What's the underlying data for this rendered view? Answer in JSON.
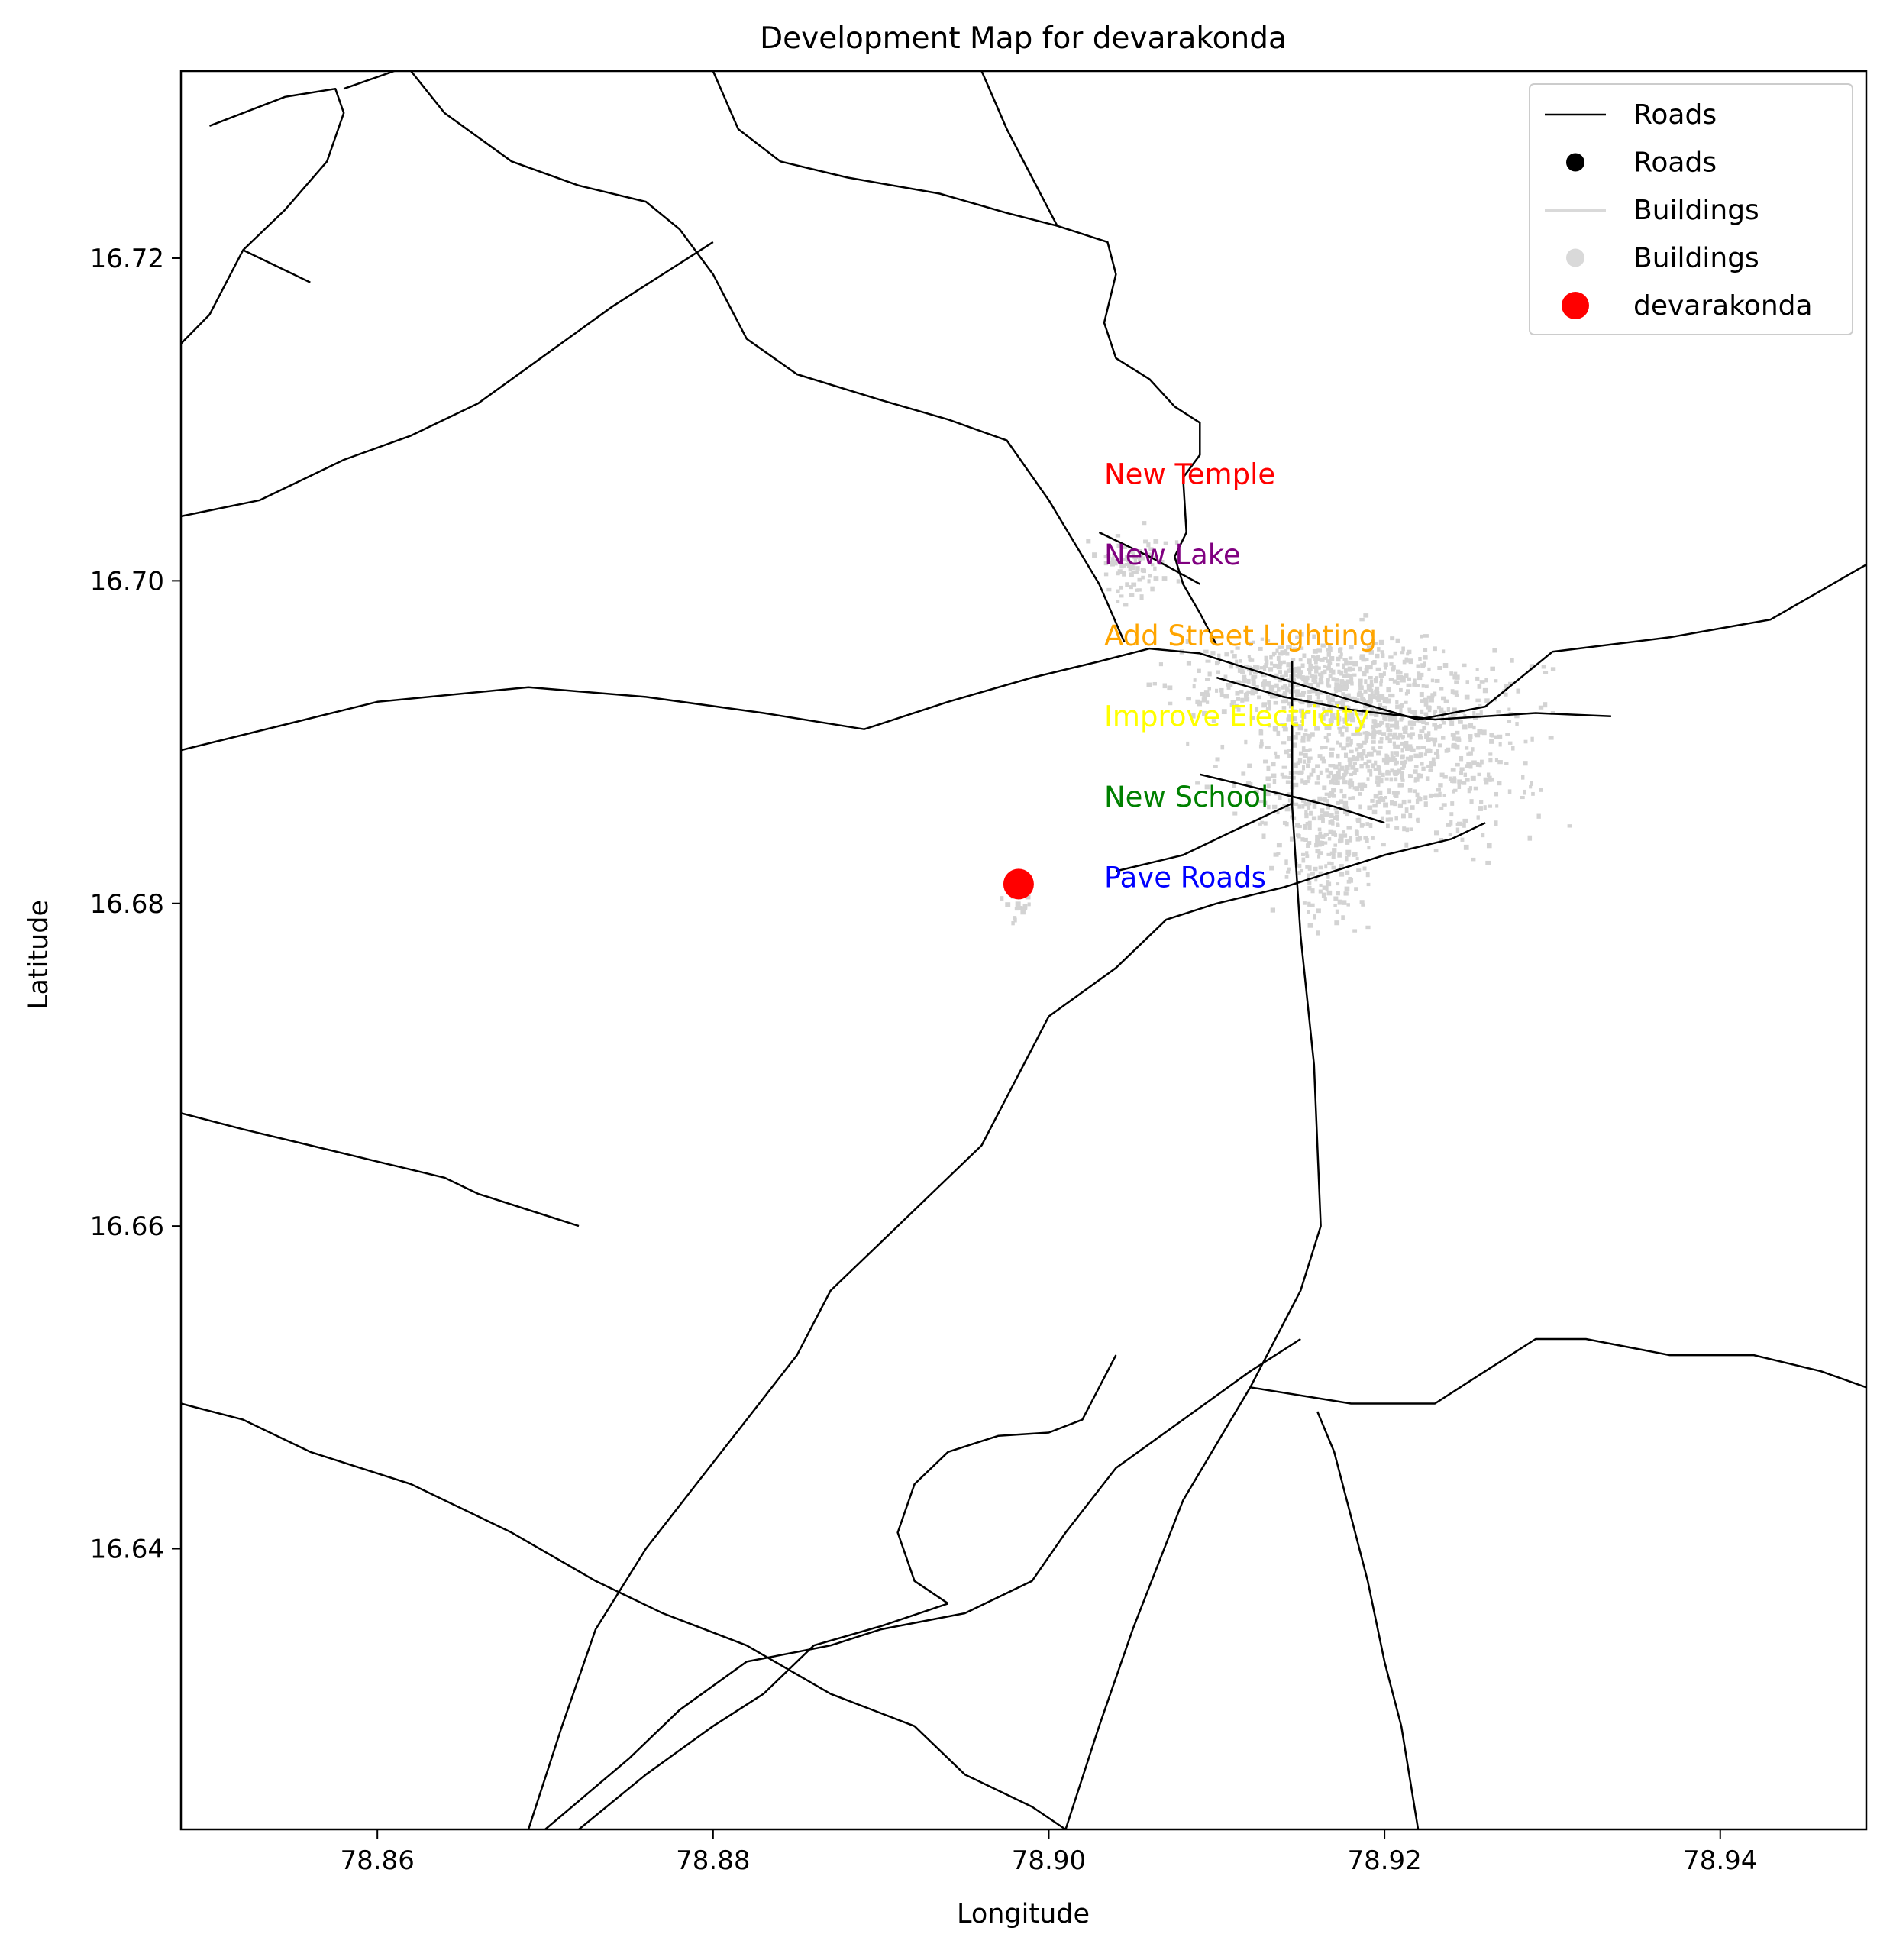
{
  "chart_data": {
    "type": "map",
    "title": "Development Map for devarakonda",
    "xlabel": "Longitude",
    "ylabel": "Latitude",
    "xlim": [
      78.8483,
      78.9487
    ],
    "ylim": [
      16.6226,
      16.7316
    ],
    "xticks": [
      78.86,
      78.88,
      78.9,
      78.92,
      78.94
    ],
    "yticks": [
      16.64,
      16.66,
      16.68,
      16.7,
      16.72
    ],
    "xtick_labels": [
      "78.86",
      "78.88",
      "78.90",
      "78.92",
      "78.94"
    ],
    "ytick_labels": [
      "16.64",
      "16.66",
      "16.68",
      "16.70",
      "16.72"
    ],
    "grid": false,
    "legend_position": "top-right",
    "legend": [
      {
        "label": "Roads",
        "kind": "line",
        "color": "#000000"
      },
      {
        "label": "Roads",
        "kind": "marker",
        "color": "#000000"
      },
      {
        "label": "Buildings",
        "kind": "line",
        "color": "#d9d9d9"
      },
      {
        "label": "Buildings",
        "kind": "marker",
        "color": "#d9d9d9"
      },
      {
        "label": "devarakonda",
        "kind": "marker",
        "color": "#ff0000"
      }
    ],
    "village": {
      "name": "devarakonda",
      "lon": 78.8982,
      "lat": 16.6812,
      "color": "#ff0000"
    },
    "annotations": [
      {
        "text": "New Temple",
        "lon": 78.9033,
        "lat": 16.706,
        "color": "#ff0000"
      },
      {
        "text": "New Lake",
        "lon": 78.9033,
        "lat": 16.701,
        "color": "#800080"
      },
      {
        "text": "Add Street Lighting",
        "lon": 78.9033,
        "lat": 16.696,
        "color": "#ffa500"
      },
      {
        "text": "Improve Electricity",
        "lon": 78.9033,
        "lat": 16.691,
        "color": "#ffff00"
      },
      {
        "text": "New School",
        "lon": 78.9033,
        "lat": 16.686,
        "color": "#008000"
      },
      {
        "text": "Pave Roads",
        "lon": 78.9033,
        "lat": 16.681,
        "color": "#0000ff"
      }
    ],
    "roads": [
      [
        [
          78.8483,
          16.6895
        ],
        [
          78.86,
          16.6925
        ],
        [
          78.869,
          16.6934
        ],
        [
          78.876,
          16.6928
        ],
        [
          78.883,
          16.6918
        ],
        [
          78.889,
          16.6908
        ],
        [
          78.894,
          16.6925
        ],
        [
          78.899,
          16.694
        ],
        [
          78.903,
          16.695
        ],
        [
          78.906,
          16.6958
        ],
        [
          78.909,
          16.6955
        ],
        [
          78.913,
          16.6942
        ],
        [
          78.918,
          16.6926
        ],
        [
          78.922,
          16.6914
        ],
        [
          78.926,
          16.6922
        ],
        [
          78.93,
          16.6956
        ],
        [
          78.937,
          16.6965
        ],
        [
          78.943,
          16.6976
        ],
        [
          78.9487,
          16.701
        ]
      ],
      [
        [
          78.91,
          16.694
        ],
        [
          78.914,
          16.6928
        ],
        [
          78.918,
          16.692
        ],
        [
          78.923,
          16.6914
        ],
        [
          78.929,
          16.6918
        ],
        [
          78.9335,
          16.6916
        ]
      ],
      [
        [
          78.896,
          16.7316
        ],
        [
          78.8975,
          16.728
        ],
        [
          78.8995,
          16.724
        ],
        [
          78.9005,
          16.722
        ],
        [
          78.9035,
          16.721
        ],
        [
          78.904,
          16.719
        ],
        [
          78.9033,
          16.716
        ],
        [
          78.904,
          16.7138
        ],
        [
          78.906,
          16.7125
        ],
        [
          78.9075,
          16.7108
        ],
        [
          78.909,
          16.7098
        ],
        [
          78.909,
          16.7078
        ],
        [
          78.908,
          16.7064
        ],
        [
          78.9082,
          16.703
        ],
        [
          78.9075,
          16.7015
        ],
        [
          78.908,
          16.6998
        ],
        [
          78.909,
          16.698
        ],
        [
          78.91,
          16.696
        ]
      ],
      [
        [
          78.88,
          16.7316
        ],
        [
          78.8815,
          16.728
        ],
        [
          78.884,
          16.726
        ],
        [
          78.888,
          16.725
        ],
        [
          78.8935,
          16.724
        ],
        [
          78.8975,
          16.7228
        ],
        [
          78.9005,
          16.722
        ]
      ],
      [
        [
          78.85,
          16.7282
        ],
        [
          78.8545,
          16.73
        ],
        [
          78.8575,
          16.7305
        ],
        [
          78.858,
          16.729
        ],
        [
          78.857,
          16.726
        ],
        [
          78.8545,
          16.723
        ],
        [
          78.852,
          16.7205
        ],
        [
          78.85,
          16.7165
        ],
        [
          78.8483,
          16.7147
        ]
      ],
      [
        [
          78.852,
          16.7205
        ],
        [
          78.856,
          16.7185
        ]
      ],
      [
        [
          78.858,
          16.7305
        ],
        [
          78.861,
          16.7316
        ]
      ],
      [
        [
          78.862,
          16.7316
        ],
        [
          78.864,
          16.729
        ],
        [
          78.868,
          16.726
        ],
        [
          78.872,
          16.7245
        ],
        [
          78.876,
          16.7235
        ],
        [
          78.878,
          16.7218
        ],
        [
          78.88,
          16.719
        ],
        [
          78.882,
          16.715
        ],
        [
          78.885,
          16.7128
        ],
        [
          78.89,
          16.7112
        ],
        [
          78.894,
          16.71
        ],
        [
          78.8975,
          16.7087
        ],
        [
          78.9,
          16.705
        ],
        [
          78.903,
          16.6998
        ],
        [
          78.9045,
          16.6962
        ]
      ],
      [
        [
          78.903,
          16.703
        ],
        [
          78.906,
          16.7015
        ],
        [
          78.909,
          16.6998
        ]
      ],
      [
        [
          78.9145,
          16.695
        ],
        [
          78.9145,
          16.686
        ],
        [
          78.915,
          16.678
        ],
        [
          78.9158,
          16.67
        ],
        [
          78.9162,
          16.66
        ],
        [
          78.915,
          16.656
        ],
        [
          78.912,
          16.65
        ],
        [
          78.908,
          16.643
        ],
        [
          78.905,
          16.635
        ],
        [
          78.903,
          16.629
        ],
        [
          78.901,
          16.6226
        ]
      ],
      [
        [
          78.87,
          16.6226
        ],
        [
          78.875,
          16.627
        ],
        [
          78.878,
          16.63
        ],
        [
          78.882,
          16.633
        ],
        [
          78.887,
          16.634
        ],
        [
          78.89,
          16.635
        ],
        [
          78.895,
          16.636
        ],
        [
          78.899,
          16.638
        ],
        [
          78.901,
          16.641
        ],
        [
          78.904,
          16.645
        ],
        [
          78.908,
          16.648
        ],
        [
          78.912,
          16.651
        ],
        [
          78.915,
          16.653
        ]
      ],
      [
        [
          78.869,
          16.6226
        ],
        [
          78.871,
          16.629
        ],
        [
          78.873,
          16.635
        ],
        [
          78.876,
          16.64
        ],
        [
          78.879,
          16.644
        ],
        [
          78.882,
          16.648
        ],
        [
          78.885,
          16.652
        ],
        [
          78.887,
          16.656
        ],
        [
          78.89,
          16.659
        ],
        [
          78.893,
          16.662
        ],
        [
          78.896,
          16.665
        ],
        [
          78.898,
          16.669
        ],
        [
          78.9,
          16.673
        ],
        [
          78.904,
          16.676
        ],
        [
          78.907,
          16.679
        ],
        [
          78.91,
          16.68
        ],
        [
          78.914,
          16.681
        ],
        [
          78.917,
          16.682
        ],
        [
          78.92,
          16.683
        ],
        [
          78.924,
          16.684
        ],
        [
          78.926,
          16.685
        ]
      ],
      [
        [
          78.8483,
          16.667
        ],
        [
          78.852,
          16.666
        ],
        [
          78.856,
          16.665
        ],
        [
          78.86,
          16.664
        ],
        [
          78.864,
          16.663
        ],
        [
          78.866,
          16.662
        ],
        [
          78.869,
          16.661
        ],
        [
          78.872,
          16.66
        ]
      ],
      [
        [
          78.8483,
          16.649
        ],
        [
          78.852,
          16.648
        ],
        [
          78.856,
          16.646
        ],
        [
          78.862,
          16.644
        ],
        [
          78.868,
          16.641
        ],
        [
          78.873,
          16.638
        ],
        [
          78.877,
          16.636
        ],
        [
          78.882,
          16.634
        ],
        [
          78.887,
          16.631
        ],
        [
          78.892,
          16.629
        ],
        [
          78.895,
          16.626
        ],
        [
          78.899,
          16.624
        ],
        [
          78.901,
          16.6226
        ]
      ],
      [
        [
          78.912,
          16.65
        ],
        [
          78.918,
          16.649
        ],
        [
          78.923,
          16.649
        ],
        [
          78.926,
          16.651
        ],
        [
          78.929,
          16.653
        ],
        [
          78.932,
          16.653
        ],
        [
          78.937,
          16.652
        ],
        [
          78.942,
          16.652
        ],
        [
          78.946,
          16.651
        ],
        [
          78.9487,
          16.65
        ]
      ],
      [
        [
          78.916,
          16.6485
        ],
        [
          78.917,
          16.646
        ],
        [
          78.918,
          16.642
        ],
        [
          78.919,
          16.638
        ],
        [
          78.92,
          16.633
        ],
        [
          78.921,
          16.629
        ],
        [
          78.922,
          16.6226
        ]
      ],
      [
        [
          78.872,
          16.6226
        ],
        [
          78.876,
          16.626
        ],
        [
          78.88,
          16.629
        ],
        [
          78.883,
          16.631
        ],
        [
          78.886,
          16.634
        ],
        [
          78.89,
          16.6352
        ],
        [
          78.894,
          16.6366
        ]
      ],
      [
        [
          78.894,
          16.6366
        ],
        [
          78.892,
          16.638
        ],
        [
          78.891,
          16.641
        ],
        [
          78.892,
          16.644
        ],
        [
          78.894,
          16.646
        ],
        [
          78.897,
          16.647
        ],
        [
          78.9,
          16.6472
        ],
        [
          78.902,
          16.648
        ],
        [
          78.904,
          16.652
        ]
      ],
      [
        [
          78.8483,
          16.704
        ],
        [
          78.853,
          16.705
        ],
        [
          78.858,
          16.7075
        ],
        [
          78.862,
          16.709
        ],
        [
          78.866,
          16.711
        ],
        [
          78.87,
          16.714
        ],
        [
          78.874,
          16.717
        ],
        [
          78.877,
          16.719
        ],
        [
          78.88,
          16.721
        ]
      ],
      [
        [
          78.909,
          16.688
        ],
        [
          78.913,
          16.687
        ],
        [
          78.917,
          16.686
        ],
        [
          78.92,
          16.685
        ]
      ],
      [
        [
          78.904,
          16.682
        ],
        [
          78.908,
          16.683
        ],
        [
          78.911,
          16.6845
        ],
        [
          78.9145,
          16.6862
        ]
      ]
    ],
    "building_clusters": [
      {
        "lon": 78.92,
        "lat": 16.69,
        "spread_lon": 0.007,
        "spread_lat": 0.005,
        "count": 900
      },
      {
        "lon": 78.915,
        "lat": 16.694,
        "spread_lon": 0.006,
        "spread_lat": 0.002,
        "count": 350
      },
      {
        "lon": 78.9165,
        "lat": 16.6835,
        "spread_lon": 0.0025,
        "spread_lat": 0.004,
        "count": 200
      },
      {
        "lon": 78.905,
        "lat": 16.701,
        "spread_lon": 0.002,
        "spread_lat": 0.002,
        "count": 80
      },
      {
        "lon": 78.8982,
        "lat": 16.68,
        "spread_lon": 0.0008,
        "spread_lat": 0.001,
        "count": 25
      }
    ]
  }
}
